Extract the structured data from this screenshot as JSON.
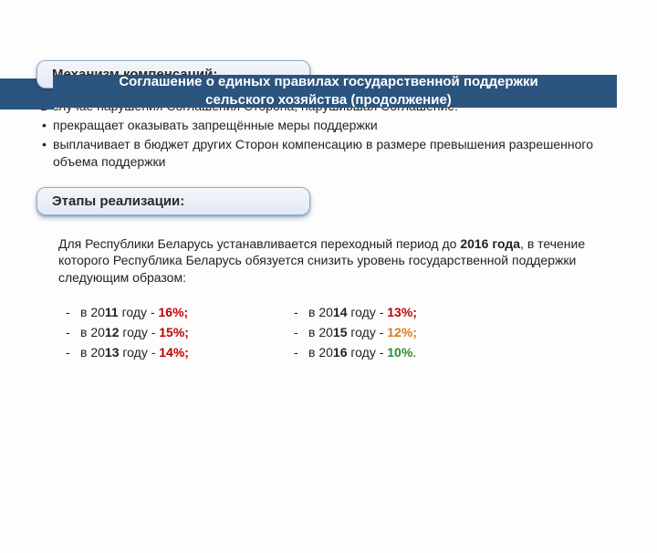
{
  "header": {
    "title_line1": "Соглашение о единых правилах государственной поддержки",
    "title_line2": "сельского хозяйства (продолжение)",
    "bar_color": "#2b547e",
    "text_color": "#ffffff"
  },
  "section1": {
    "title": "Механизм компенсаций:",
    "intro": "В случае нарушения Соглашения Сторона, нарушившая Соглашение:",
    "bullets": [
      "прекращает оказывать запрещённые меры поддержки",
      "выплачивает в бюджет других  Сторон компенсацию в размере превышения разрешенного объема поддержки"
    ]
  },
  "section2": {
    "title": "Этапы реализации:",
    "intro_pre": "Для Республики Беларусь устанавливается переходный период до ",
    "intro_bold": "2016 года",
    "intro_post": ", в течение которого Республика Беларусь обязуется снизить уровень государственной поддержки следующим образом:",
    "years_left": [
      {
        "pre": "в 20",
        "bold": "11",
        "post": " году - ",
        "pct": "16%;",
        "color": "#c00000"
      },
      {
        "pre": "в 20",
        "bold": "12",
        "post": " году - ",
        "pct": "15%;",
        "color": "#c00000"
      },
      {
        "pre": "в 20",
        "bold": "13",
        "post": " году - ",
        "pct": "14%;",
        "color": "#c00000"
      }
    ],
    "years_right": [
      {
        "pre": "в 20",
        "bold": "14",
        "post": " году - ",
        "pct": "13%;",
        "color": "#c00000"
      },
      {
        "pre": "в 20",
        "bold": "15",
        "post": " году - ",
        "pct": "12%;",
        "color": "#d87c1a"
      },
      {
        "pre": "в 20",
        "bold": "16",
        "post": " году - ",
        "pct": "10%",
        "trail": ".",
        "color": "#2e8b2e"
      }
    ]
  },
  "pill_style": {
    "bg_top": "#f3f6fa",
    "bg_bottom": "#e3eaf4",
    "border": "#8ea8cc"
  }
}
